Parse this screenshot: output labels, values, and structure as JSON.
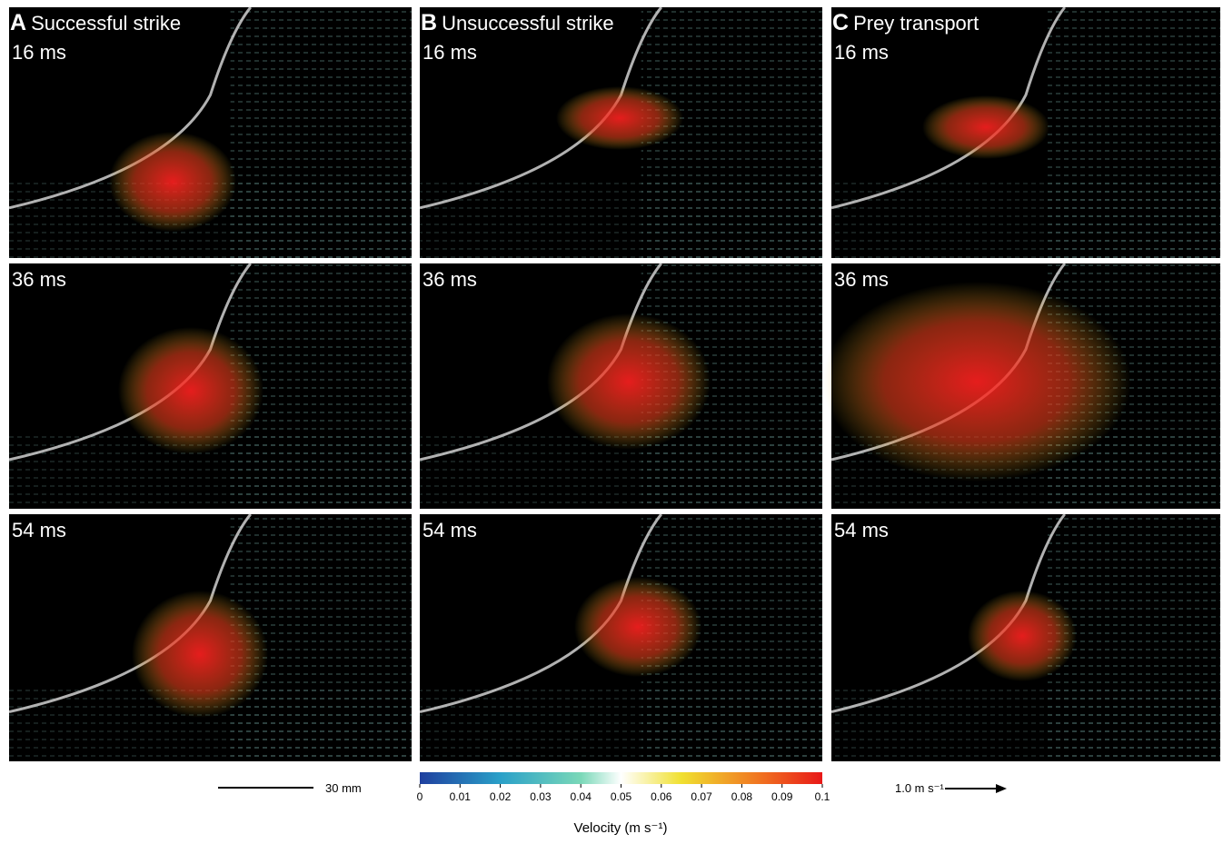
{
  "panels": [
    {
      "letter": "A",
      "title": "Successful strike",
      "times": [
        "16 ms",
        "36 ms",
        "54 ms"
      ]
    },
    {
      "letter": "B",
      "title": "Unsuccessful strike",
      "times": [
        "16 ms",
        "36 ms",
        "54 ms"
      ]
    },
    {
      "letter": "C",
      "title": "Prey transport",
      "times": [
        "16 ms",
        "36 ms",
        "54 ms"
      ]
    }
  ],
  "scale_bar": {
    "label": "30 mm"
  },
  "colorbar": {
    "range": [
      0,
      0.1
    ],
    "ticks": [
      0,
      0.01,
      0.02,
      0.03,
      0.04,
      0.05,
      0.06,
      0.07,
      0.08,
      0.09,
      0.1
    ],
    "label": "Velocity (m s⁻¹)"
  },
  "speed_reference": {
    "label": "1.0 m s⁻¹"
  }
}
